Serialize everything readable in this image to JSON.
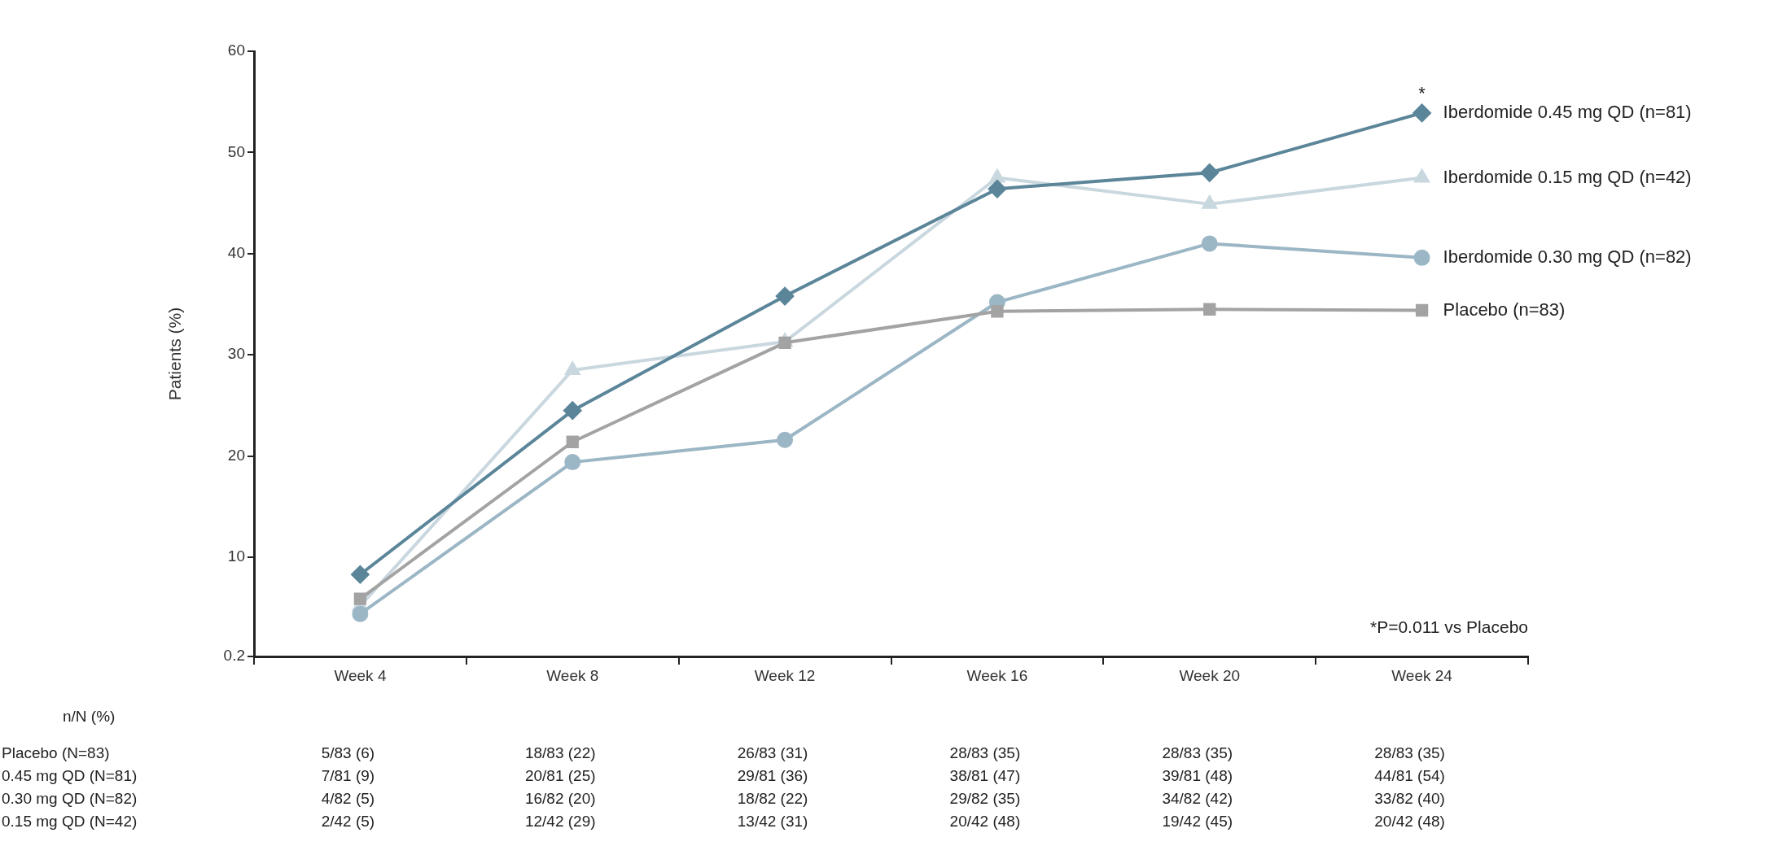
{
  "chart_data": {
    "type": "line",
    "ylabel": "Patients (%)",
    "categories": [
      "Week 4",
      "Week 8",
      "Week 12",
      "Week 16",
      "Week 20",
      "Week 24"
    ],
    "ylim": [
      0.2,
      60
    ],
    "yticks": [
      0.2,
      10,
      20,
      30,
      40,
      50,
      60
    ],
    "grid": false,
    "legend": false,
    "series": [
      {
        "name": "Placebo (n=83)",
        "color": "#a3a3a3",
        "marker": "square",
        "values": [
          5.9,
          21.4,
          31.2,
          34.3,
          34.5,
          34.4
        ],
        "value_labels": [
          "5/83 (6)",
          "18/83 (22)",
          "26/83 (31)",
          "28/83 (35)",
          "28/83 (35)",
          "28/83 (35)"
        ]
      },
      {
        "name": "Iberdomide 0.45 mg QD (n=81)",
        "color": "#5b8599",
        "marker": "diamond",
        "values": [
          8.3,
          24.5,
          35.8,
          46.4,
          48.0,
          53.9
        ],
        "value_labels": [
          "7/81 (9)",
          "20/81 (25)",
          "29/81 (36)",
          "38/81 (47)",
          "39/81 (48)",
          "44/81 (54)"
        ]
      },
      {
        "name": "Iberdomide 0.30 mg QD (n=82)",
        "color": "#9bb6c5",
        "marker": "circle",
        "values": [
          4.4,
          19.4,
          21.6,
          35.2,
          41.0,
          39.6
        ],
        "value_labels": [
          "4/82 (5)",
          "16/82 (20)",
          "18/82 (22)",
          "29/82 (35)",
          "34/82 (42)",
          "33/82 (40)"
        ]
      },
      {
        "name": "Iberdomide 0.15 mg QD (n=42)",
        "color": "#c9d7df",
        "marker": "triangle",
        "values": [
          5.2,
          28.5,
          31.3,
          47.5,
          44.9,
          47.5
        ],
        "value_labels": [
          "2/42 (5)",
          "12/42 (29)",
          "13/42 (31)",
          "20/42 (48)",
          "19/42 (45)",
          "20/42 (48)"
        ]
      }
    ],
    "annotations": [
      {
        "text": "*",
        "x": "Week 24",
        "y": 53.9
      },
      "*P=0.011 vs Placebo",
      "n/N (%)",
      "Placebo (N=83)",
      "0.45 mg QD (N=81)",
      "0.30 mg QD (N=82)",
      "0.15 mg QD (N=42)"
    ]
  }
}
